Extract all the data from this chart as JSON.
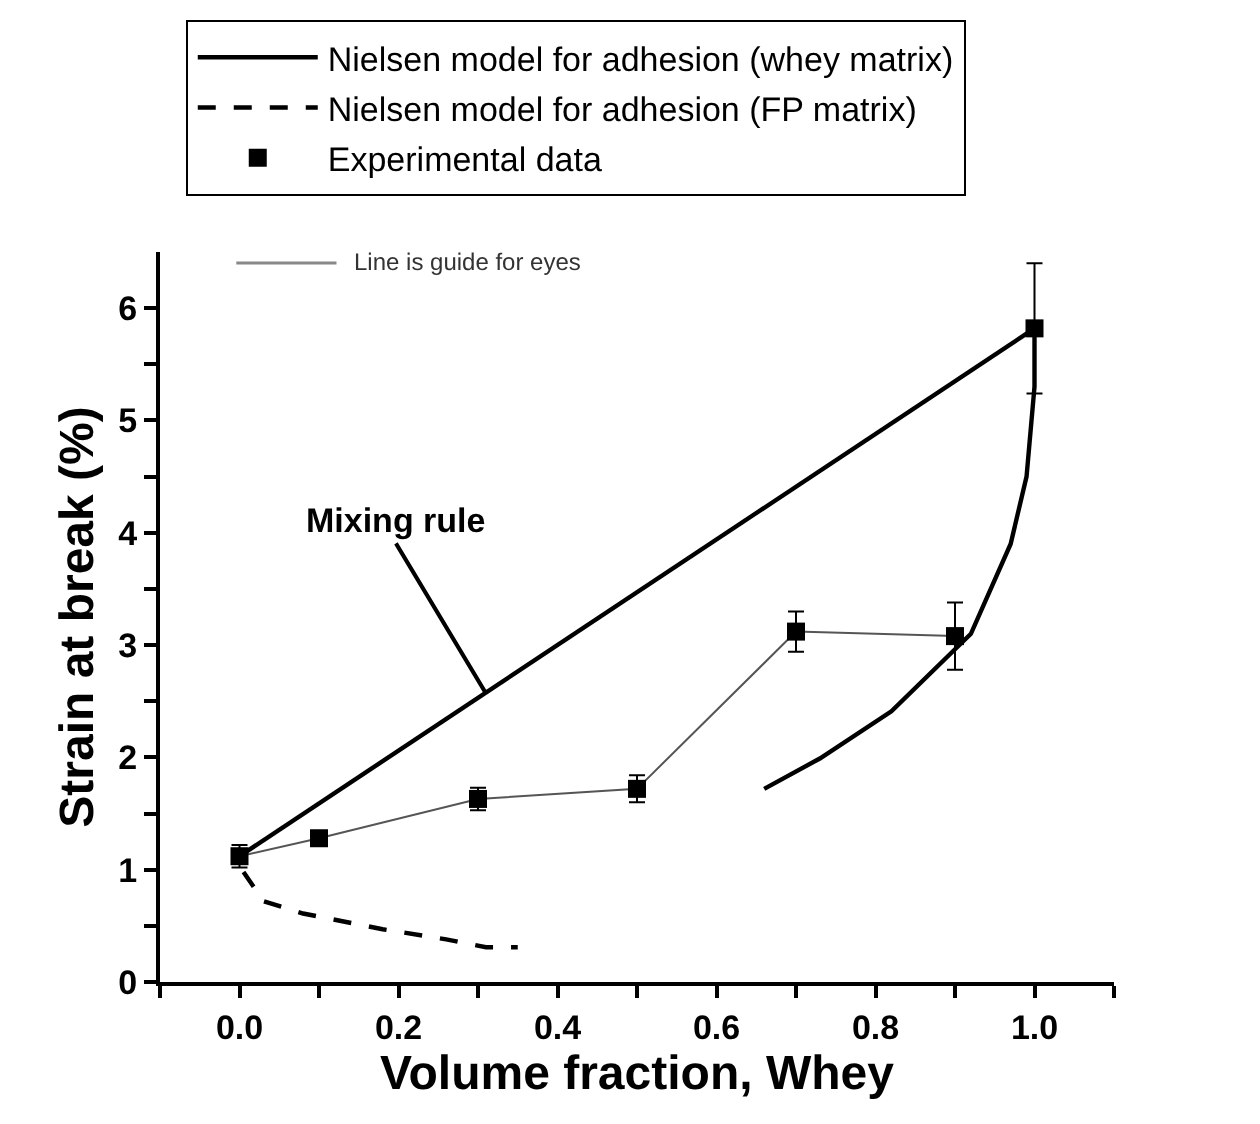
{
  "chart_data": {
    "type": "line",
    "xlabel": "Volume fraction, Whey",
    "ylabel": "Strain at break (%)",
    "xlim": [
      -0.1,
      1.1
    ],
    "ylim": [
      0,
      6.5
    ],
    "xticks": [
      {
        "value": -0.1,
        "label": null
      },
      {
        "value": 0,
        "label": "0.0"
      },
      {
        "value": 0.1,
        "label": null
      },
      {
        "value": 0.2,
        "label": "0.2"
      },
      {
        "value": 0.3,
        "label": null
      },
      {
        "value": 0.4,
        "label": "0.4"
      },
      {
        "value": 0.5,
        "label": null
      },
      {
        "value": 0.6,
        "label": "0.6"
      },
      {
        "value": 0.7,
        "label": null
      },
      {
        "value": 0.8,
        "label": "0.8"
      },
      {
        "value": 0.9,
        "label": null
      },
      {
        "value": 1.0,
        "label": "1.0"
      },
      {
        "value": 1.1,
        "label": null
      }
    ],
    "yticks": [
      0,
      {
        "value": 0.5,
        "label": null
      },
      1,
      {
        "value": 1.5,
        "label": null
      },
      2,
      {
        "value": 2.5,
        "label": null
      },
      3,
      {
        "value": 3.5,
        "label": null
      },
      4,
      {
        "value": 4.5,
        "label": null
      },
      5,
      {
        "value": 5.5,
        "label": null
      },
      6
    ],
    "legend": "top",
    "series": [
      {
        "name": "Nielsen model for adhesion (whey matrix)",
        "color": "#000000",
        "line_style": "solid",
        "x": [
          0.66,
          0.73,
          0.82,
          0.92,
          0.97,
          0.99,
          1.0,
          1.0
        ],
        "values": [
          1.72,
          1.99,
          2.41,
          3.1,
          3.9,
          4.5,
          5.3,
          5.82
        ]
      },
      {
        "name": "Nielsen model for adhesion (FP matrix)",
        "color": "#000000",
        "line_style": "dashed",
        "x": [
          0.005,
          0.03,
          0.08,
          0.18,
          0.26,
          0.31,
          0.35
        ],
        "values": [
          0.98,
          0.72,
          0.61,
          0.47,
          0.38,
          0.31,
          0.31
        ]
      },
      {
        "color": "#555555",
        "line_style": "solid",
        "x": [
          0,
          0.1,
          0.3,
          0.5,
          0.7,
          0.9
        ],
        "values": [
          1.12,
          1.28,
          1.63,
          1.72,
          3.12,
          3.08
        ]
      },
      {
        "name": "Experimental data",
        "type": "scatter",
        "color": "#000000",
        "marker": "square",
        "x": [
          0,
          0.1,
          0.3,
          0.5,
          0.7,
          0.9,
          1.0
        ],
        "values": [
          1.12,
          1.28,
          1.63,
          1.72,
          3.12,
          3.08,
          5.82
        ],
        "errors": [
          0.1,
          null,
          0.1,
          0.12,
          0.18,
          0.3,
          0.58
        ]
      },
      {
        "color": "#000000",
        "line_style": "solid",
        "x": [
          0,
          1.0
        ],
        "values": [
          1.12,
          5.82
        ]
      }
    ],
    "annotations": [
      {
        "text": "Mixing rule",
        "x": 0.31,
        "y": 2.57
      },
      "Line is guide for eyes"
    ]
  }
}
